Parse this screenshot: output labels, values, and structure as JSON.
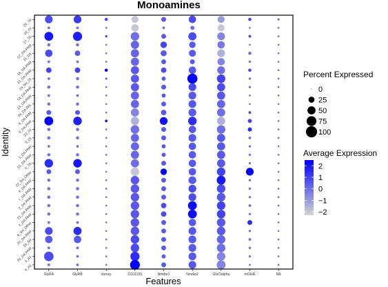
{
  "chart_data": {
    "type": "dotplot",
    "title": "Monoamines",
    "xlabel": "Features",
    "ylabel": "Identity",
    "features": [
      "GlyRA",
      "GlyRB",
      "dumsy",
      "CG11155",
      "Nmdar1",
      "Nmdar2",
      "GluClalpha",
      "mGluR",
      "NA"
    ],
    "identities": [
      "25_TA",
      "18_OI",
      "17_TA",
      "12_DA.PAM",
      "11_DA",
      "16_DA.PAM",
      "10_DA.PAM",
      "24_5H_OI",
      "14_DA.PAM",
      "13_DA.PAM",
      "26_DA.PAL",
      "9_DA.PAM",
      "4_DA.PAM",
      "23_OI",
      "5_OI",
      "1_DA.PAM",
      "15_DA.PAM",
      "0_TA",
      "22_5H_Other",
      "8_DA.PAM",
      "7_DA.PAM",
      "2_DA.PAM",
      "21_DA.PAM",
      "3_DA.PAM",
      "6_5H_Other",
      "20_DA.PAM",
      "19_5H",
      "20_DA.PAM",
      "3_A1",
      "9_A1"
    ],
    "pct_expressed": [
      [
        45,
        45,
        5,
        35,
        15,
        40,
        35,
        5,
        2
      ],
      [
        3,
        3,
        1,
        40,
        3,
        10,
        35,
        1,
        1
      ],
      [
        60,
        65,
        2,
        55,
        15,
        50,
        45,
        3,
        1
      ],
      [
        5,
        5,
        1,
        50,
        30,
        30,
        40,
        1,
        1
      ],
      [
        40,
        20,
        1,
        50,
        25,
        35,
        45,
        5,
        1
      ],
      [
        3,
        3,
        1,
        50,
        15,
        15,
        40,
        2,
        1
      ],
      [
        20,
        20,
        5,
        50,
        20,
        40,
        45,
        5,
        1
      ],
      [
        3,
        5,
        2,
        50,
        10,
        80,
        55,
        2,
        1
      ],
      [
        5,
        5,
        1,
        50,
        15,
        45,
        50,
        2,
        1
      ],
      [
        3,
        3,
        1,
        50,
        10,
        45,
        50,
        1,
        1
      ],
      [
        5,
        5,
        1,
        50,
        15,
        45,
        50,
        1,
        1
      ],
      [
        15,
        15,
        1,
        50,
        20,
        45,
        50,
        3,
        1
      ],
      [
        60,
        55,
        3,
        50,
        45,
        55,
        50,
        10,
        1
      ],
      [
        5,
        5,
        1,
        55,
        15,
        40,
        55,
        10,
        1
      ],
      [
        5,
        5,
        1,
        50,
        15,
        45,
        50,
        3,
        1
      ],
      [
        3,
        3,
        1,
        50,
        10,
        40,
        50,
        2,
        1
      ],
      [
        5,
        5,
        1,
        50,
        10,
        40,
        50,
        2,
        1
      ],
      [
        55,
        55,
        1,
        50,
        15,
        40,
        50,
        2,
        1
      ],
      [
        15,
        15,
        1,
        55,
        30,
        40,
        55,
        45,
        1
      ],
      [
        5,
        5,
        1,
        55,
        15,
        45,
        60,
        2,
        1
      ],
      [
        5,
        5,
        1,
        55,
        15,
        45,
        55,
        2,
        1
      ],
      [
        5,
        5,
        1,
        55,
        15,
        45,
        55,
        2,
        1
      ],
      [
        5,
        5,
        1,
        55,
        20,
        60,
        55,
        3,
        1
      ],
      [
        5,
        5,
        1,
        55,
        20,
        60,
        55,
        2,
        1
      ],
      [
        3,
        3,
        1,
        55,
        15,
        40,
        55,
        15,
        1
      ],
      [
        45,
        50,
        1,
        55,
        15,
        45,
        55,
        2,
        1
      ],
      [
        40,
        40,
        1,
        55,
        15,
        45,
        55,
        3,
        1
      ],
      [
        3,
        3,
        1,
        55,
        15,
        45,
        55,
        2,
        1
      ],
      [
        70,
        3,
        1,
        65,
        10,
        45,
        55,
        2,
        1
      ],
      [
        3,
        3,
        1,
        75,
        15,
        45,
        60,
        1,
        1
      ]
    ],
    "avg_expression": [
      [
        0.8,
        1.2,
        1,
        -2,
        0.5,
        0.8,
        -1,
        1,
        0
      ],
      [
        0,
        0,
        0,
        -2,
        0,
        0,
        -2,
        0,
        0
      ],
      [
        2,
        1.8,
        1,
        0,
        0.5,
        0.8,
        -0.5,
        1,
        0
      ],
      [
        0,
        0,
        0,
        0.2,
        1,
        0.5,
        -0.2,
        0,
        0
      ],
      [
        0.8,
        0.5,
        0,
        0.2,
        0.5,
        0.5,
        -1.5,
        0,
        0
      ],
      [
        0,
        0,
        0,
        0.2,
        0.5,
        0.5,
        -0.5,
        0,
        0
      ],
      [
        1,
        1,
        2.5,
        0.5,
        0.8,
        0.5,
        0,
        1,
        0
      ],
      [
        0,
        0,
        0,
        0.5,
        0.5,
        2.5,
        1,
        0,
        0
      ],
      [
        0,
        0,
        0,
        0.5,
        0.5,
        0.8,
        0.8,
        0,
        0
      ],
      [
        0,
        0,
        0,
        0.2,
        0.5,
        0.5,
        0.5,
        0,
        0
      ],
      [
        0,
        0,
        0,
        0.2,
        0.5,
        0.5,
        0.2,
        0,
        0
      ],
      [
        0.5,
        0.5,
        0,
        -0.5,
        0.5,
        0.5,
        0,
        1,
        0
      ],
      [
        2.5,
        1.8,
        2,
        -1.5,
        2.2,
        1.5,
        -1.5,
        1,
        0
      ],
      [
        0,
        0,
        0,
        0,
        0.5,
        0.5,
        0,
        1.5,
        0
      ],
      [
        0,
        0,
        0,
        0.2,
        0.5,
        0.5,
        0.5,
        0,
        0
      ],
      [
        0,
        0,
        0,
        0.2,
        0.5,
        0.5,
        0.5,
        0,
        0
      ],
      [
        0,
        0,
        0,
        0.2,
        0.5,
        0.5,
        0.5,
        0,
        0
      ],
      [
        1.5,
        2,
        0,
        0,
        0.5,
        0.5,
        0.5,
        0,
        0
      ],
      [
        0.5,
        0.5,
        0,
        -2,
        2.5,
        0.5,
        1,
        2.5,
        0
      ],
      [
        0,
        0,
        0,
        0.5,
        0.5,
        0.5,
        2,
        0,
        0
      ],
      [
        0,
        0,
        0,
        0.5,
        0.5,
        0.8,
        0.8,
        0,
        0
      ],
      [
        0,
        0,
        0,
        0.5,
        0.5,
        0.8,
        0.5,
        0,
        0
      ],
      [
        0,
        0,
        0,
        0.5,
        0.8,
        2.2,
        1,
        0,
        0
      ],
      [
        0,
        0,
        0,
        0.5,
        0.8,
        2.2,
        1,
        0,
        0
      ],
      [
        0,
        0,
        0,
        0.5,
        0.5,
        0.5,
        0.5,
        1.5,
        0
      ],
      [
        0.8,
        1.5,
        0,
        0.5,
        0.5,
        0.5,
        0.5,
        0,
        0
      ],
      [
        0.5,
        0.5,
        0,
        0.8,
        0.5,
        0.5,
        0.2,
        0,
        0
      ],
      [
        0,
        0,
        0,
        0.8,
        0.5,
        0.5,
        0,
        0,
        0
      ],
      [
        0.8,
        0,
        0,
        1.5,
        0.5,
        0.5,
        -0.5,
        0,
        0
      ],
      [
        0,
        0,
        0,
        2.5,
        0.5,
        0.5,
        -0.5,
        0,
        0
      ]
    ],
    "size_legend": {
      "title": "Percent Expressed",
      "values": [
        0,
        25,
        50,
        75,
        100
      ],
      "labels": [
        "0",
        "25",
        "50",
        "75",
        "100"
      ]
    },
    "color_legend": {
      "title": "Average Expression",
      "range": [
        -2.3,
        2.5
      ],
      "ticks": [
        2,
        1,
        0,
        -1,
        -2
      ],
      "labels": [
        "2",
        "1",
        "0",
        "−1",
        "−2"
      ],
      "low_color": "#d3d3d3",
      "high_color": "#0000ff"
    },
    "grid": false,
    "legend_position": "right"
  }
}
